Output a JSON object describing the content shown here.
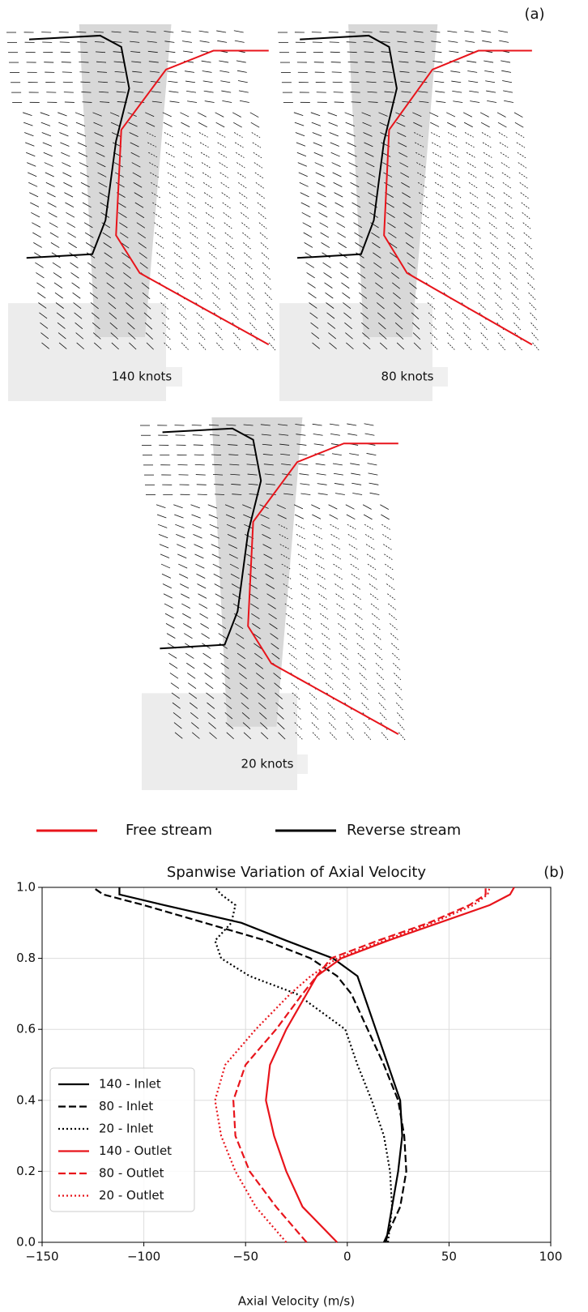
{
  "panel_a": {
    "label": "(a)",
    "plots": [
      "140 knots",
      "80 knots",
      "20 knots"
    ],
    "legend": [
      {
        "name": "Free stream",
        "color": "#e8141b"
      },
      {
        "name": "Reverse stream",
        "color": "#000000"
      }
    ]
  },
  "chart_data": {
    "type": "line",
    "title": "Spanwise Variation of Axial Velocity",
    "label": "(b)",
    "x_label": "Axial Velocity (m/s)",
    "xlim": [
      -150,
      100
    ],
    "xticks": [
      {
        "value": -150,
        "label": "−150"
      },
      {
        "value": -100,
        "label": "−100"
      },
      {
        "value": -50,
        "label": "−50"
      },
      0,
      50,
      100
    ],
    "ylim": [
      0,
      1
    ],
    "yticks": [
      {
        "value": 0,
        "label": "0.0"
      },
      {
        "value": 0.2,
        "label": "0.2"
      },
      {
        "value": 0.4,
        "label": "0.4"
      },
      {
        "value": 0.6,
        "label": "0.6"
      },
      {
        "value": 0.8,
        "label": "0.8"
      },
      {
        "value": 1,
        "label": "1.0"
      }
    ],
    "grid": true,
    "legend": "lower left",
    "series": [
      {
        "name": "140 - Inlet",
        "color": "#000000",
        "dash": "solid",
        "x": [
          19,
          22,
          25,
          27,
          26,
          20,
          14,
          8,
          5,
          -7,
          -30,
          -52,
          -90,
          -112,
          -112
        ],
        "values": [
          0,
          0.1,
          0.2,
          0.3,
          0.4,
          0.5,
          0.6,
          0.7,
          0.75,
          0.8,
          0.85,
          0.9,
          0.95,
          0.98,
          1
        ]
      },
      {
        "name": "80 - Inlet",
        "color": "#000000",
        "dash": "dashed",
        "x": [
          18,
          26,
          29,
          28,
          25,
          18,
          10,
          2,
          -5,
          -18,
          -40,
          -70,
          -100,
          -120,
          -125
        ],
        "values": [
          0,
          0.1,
          0.2,
          0.3,
          0.4,
          0.5,
          0.6,
          0.7,
          0.75,
          0.8,
          0.85,
          0.9,
          0.95,
          0.98,
          1
        ]
      },
      {
        "name": "20 - Inlet",
        "color": "#000000",
        "dash": "dotted",
        "x": [
          20,
          22,
          21,
          18,
          12,
          5,
          -1,
          -25,
          -48,
          -62,
          -65,
          -57,
          -55,
          -62,
          -65
        ],
        "values": [
          0,
          0.1,
          0.2,
          0.3,
          0.4,
          0.5,
          0.6,
          0.7,
          0.75,
          0.8,
          0.85,
          0.9,
          0.95,
          0.98,
          1
        ]
      },
      {
        "name": "140 - Outlet",
        "color": "#e8141b",
        "dash": "solid",
        "x": [
          -5,
          -22,
          -30,
          -36,
          -40,
          -38,
          -30,
          -20,
          -15,
          -3,
          20,
          45,
          70,
          80,
          82
        ],
        "values": [
          0,
          0.1,
          0.2,
          0.3,
          0.4,
          0.5,
          0.6,
          0.7,
          0.75,
          0.8,
          0.85,
          0.9,
          0.95,
          0.98,
          1
        ]
      },
      {
        "name": "80 - Outlet",
        "color": "#e8141b",
        "dash": "dashed",
        "x": [
          -20,
          -35,
          -48,
          -55,
          -56,
          -50,
          -35,
          -22,
          -15,
          -8,
          15,
          40,
          60,
          68,
          68
        ],
        "values": [
          0,
          0.1,
          0.2,
          0.3,
          0.4,
          0.5,
          0.6,
          0.7,
          0.75,
          0.8,
          0.85,
          0.9,
          0.95,
          0.98,
          1
        ]
      },
      {
        "name": "20 - Outlet",
        "color": "#e8141b",
        "dash": "dotted",
        "x": [
          -30,
          -45,
          -55,
          -62,
          -65,
          -60,
          -45,
          -28,
          -18,
          -5,
          18,
          42,
          62,
          69,
          70
        ],
        "values": [
          0,
          0.1,
          0.2,
          0.3,
          0.4,
          0.5,
          0.6,
          0.7,
          0.75,
          0.8,
          0.85,
          0.9,
          0.95,
          0.98,
          1
        ]
      }
    ]
  }
}
